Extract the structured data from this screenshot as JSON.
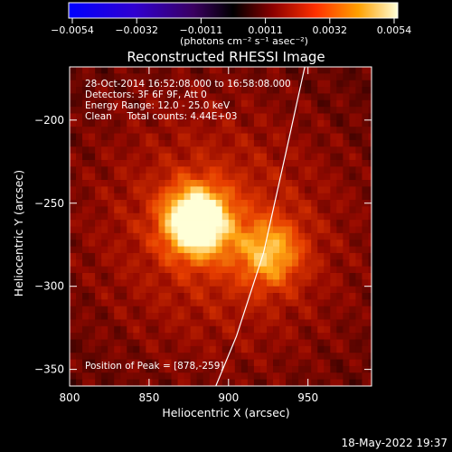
{
  "chart_data": {
    "type": "heatmap",
    "title": "Reconstructed RHESSI Image",
    "xlabel": "Heliocentric X (arcsec)",
    "ylabel": "Heliocentric Y (arcsec)",
    "xlim": [
      800,
      990
    ],
    "ylim": [
      -360,
      -168
    ],
    "x_ticks": [
      800,
      850,
      900,
      950
    ],
    "y_ticks": [
      -200,
      -250,
      -300,
      -350
    ],
    "colorbar": {
      "ticks": [
        "-0.0054",
        "-0.0032",
        "-0.0011",
        "0.0011",
        "0.0032",
        "0.0054"
      ],
      "range": [
        -0.0054,
        0.0054
      ],
      "units_line": "(photons cm⁻² s⁻¹ asec⁻²)"
    },
    "info_lines": [
      "28-Oct-2014 16:52:08.000 to 16:58:08.000",
      "Detectors: 3F 6F 9F, Att 0",
      "Energy Range: 12.0 - 25.0 keV",
      "Clean     Total counts: 4.44E+03"
    ],
    "peak_text": "Position of Peak = [878,-259]",
    "sources": [
      {
        "x": 878,
        "y": -259,
        "amplitude": 0.0054
      },
      {
        "x": 924,
        "y": -278,
        "amplitude": 0.0026
      }
    ],
    "limb_points": [
      [
        948,
        -168
      ],
      [
        936,
        -220
      ],
      [
        922,
        -280
      ],
      [
        905,
        -330
      ],
      [
        892,
        -360
      ]
    ],
    "limb_color": "#ffffff",
    "colormap": "hot-blue diverging"
  },
  "footer_timestamp": "18-May-2022 19:37"
}
